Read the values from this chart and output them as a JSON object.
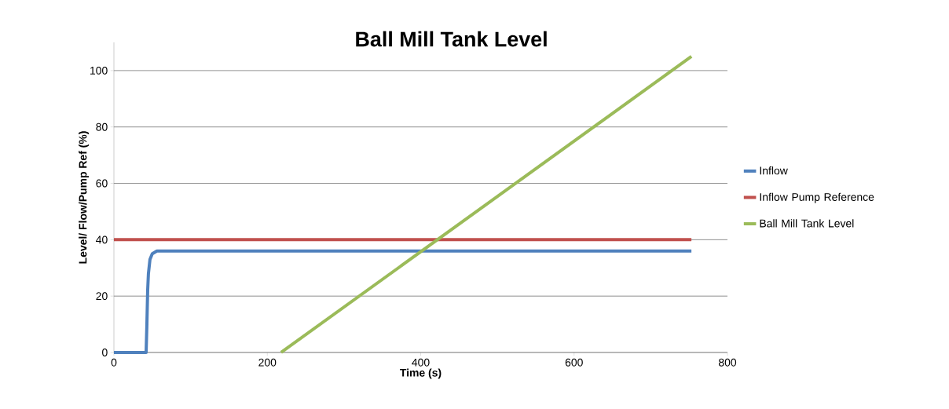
{
  "chart_data": {
    "type": "line",
    "title": "Ball Mill Tank Level",
    "xlabel": "Time (s)",
    "ylabel": "Level/ Flow/Pump Ref (%)",
    "xlim": [
      0,
      800
    ],
    "xticks": [
      0,
      200,
      400,
      600,
      800
    ],
    "ylim": [
      0,
      110
    ],
    "yticks": [
      0,
      20,
      40,
      60,
      80,
      100
    ],
    "grid": "y",
    "legend": "right",
    "marker": "none",
    "line_style": "solid",
    "series": [
      {
        "name": "Inflow",
        "color": "#4f81bd",
        "x": [
          0,
          20,
          40,
          42,
          43,
          44,
          45,
          47,
          50,
          56,
          100,
          150,
          200,
          300,
          400,
          500,
          600,
          700,
          753
        ],
        "values": [
          0,
          0,
          0,
          0,
          10,
          22,
          28,
          33,
          35,
          36,
          36,
          36,
          36,
          36,
          36,
          36,
          36,
          36,
          36
        ]
      },
      {
        "name": "Inflow Pump Reference",
        "color": "#c0504d",
        "x": [
          0,
          753
        ],
        "values": [
          40,
          40
        ]
      },
      {
        "name": "Ball Mill Tank Level",
        "color": "#9bbb59",
        "x": [
          218,
          753
        ],
        "values": [
          0,
          105
        ]
      }
    ]
  }
}
